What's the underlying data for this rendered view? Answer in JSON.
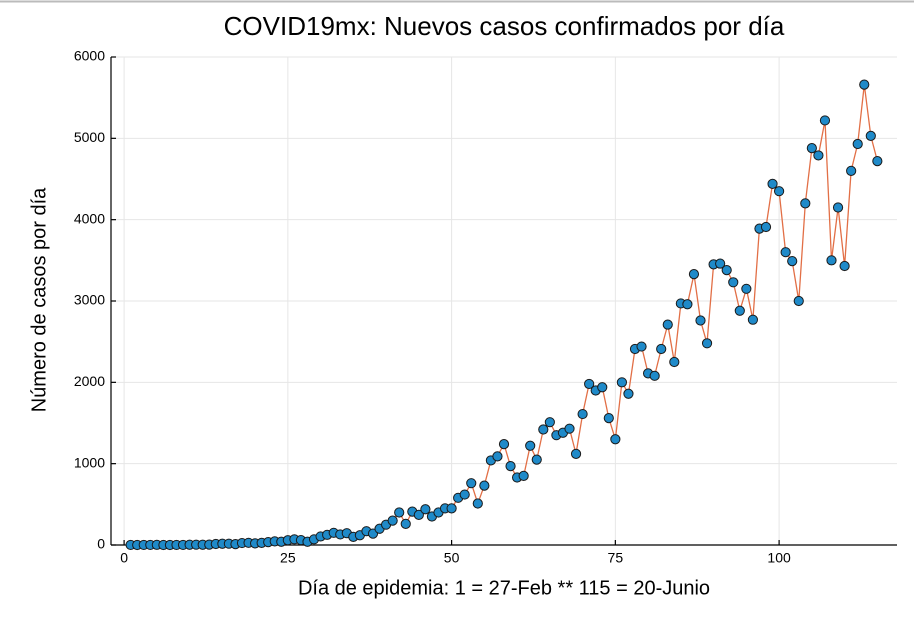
{
  "chart_data": {
    "type": "scatter-line",
    "title": "COVID19mx: Nuevos casos confirmados por día",
    "x_label": "Día de epidemia: 1 = 27-Feb ** 115 = 20-Junio",
    "y_label": "Número de casos por día",
    "x": [
      1,
      2,
      3,
      4,
      5,
      6,
      7,
      8,
      9,
      10,
      11,
      12,
      13,
      14,
      15,
      16,
      17,
      18,
      19,
      20,
      21,
      22,
      23,
      24,
      25,
      26,
      27,
      28,
      29,
      30,
      31,
      32,
      33,
      34,
      35,
      36,
      37,
      38,
      39,
      40,
      41,
      42,
      43,
      44,
      45,
      46,
      47,
      48,
      49,
      50,
      51,
      52,
      53,
      54,
      55,
      56,
      57,
      58,
      59,
      60,
      61,
      62,
      63,
      64,
      65,
      66,
      67,
      68,
      69,
      70,
      71,
      72,
      73,
      74,
      75,
      76,
      77,
      78,
      79,
      80,
      81,
      82,
      83,
      84,
      85,
      86,
      87,
      88,
      89,
      90,
      91,
      92,
      93,
      94,
      95,
      96,
      97,
      98,
      99,
      100,
      101,
      102,
      103,
      104,
      105,
      106,
      107,
      108,
      109,
      110,
      111,
      112,
      113,
      114,
      115
    ],
    "series": [
      {
        "name": "Nuevos casos",
        "color": "#1f8ac9",
        "line_color": "#e26f46",
        "values": [
          1,
          0,
          1,
          1,
          2,
          0,
          0,
          1,
          1,
          3,
          4,
          3,
          5,
          12,
          15,
          16,
          11,
          24,
          27,
          20,
          26,
          35,
          45,
          40,
          58,
          70,
          60,
          40,
          70,
          105,
          125,
          150,
          130,
          145,
          100,
          120,
          170,
          140,
          200,
          250,
          300,
          400,
          260,
          410,
          370,
          440,
          350,
          400,
          450,
          450,
          580,
          620,
          760,
          510,
          730,
          1040,
          1090,
          1240,
          970,
          830,
          850,
          1220,
          1050,
          1420,
          1510,
          1350,
          1380,
          1430,
          1120,
          1610,
          1980,
          1900,
          1940,
          1560,
          1300,
          2000,
          1860,
          2410,
          2440,
          2110,
          2080,
          2410,
          2710,
          2250,
          2970,
          2960,
          3330,
          2760,
          2480,
          3450,
          3460,
          3380,
          3230,
          2880,
          3150,
          2770,
          3890,
          3910,
          4440,
          4350,
          3600,
          3490,
          3000,
          4200,
          4880,
          4790,
          5220,
          3500,
          4150,
          3430,
          4600,
          4930,
          5660,
          5030,
          4720
        ]
      }
    ],
    "xlim": [
      -2,
      118
    ],
    "xticks": [
      0,
      25,
      50,
      75,
      100
    ],
    "ylim": [
      0,
      6000
    ],
    "yticks": [
      0,
      1000,
      2000,
      3000,
      4000,
      5000,
      6000
    ],
    "grid": true
  }
}
